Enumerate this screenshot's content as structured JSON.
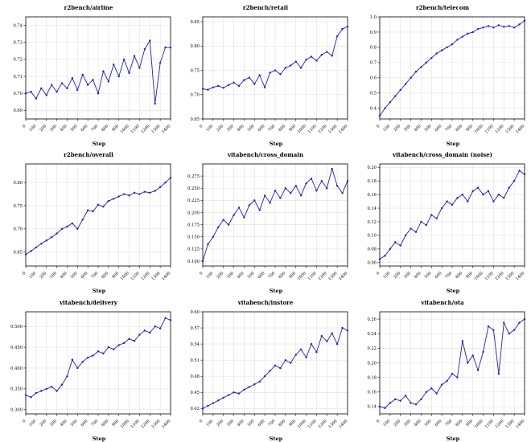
{
  "style": {
    "line_color": "#2121ad",
    "marker_color": "#2121ad",
    "grid_color": "#e0e0e0",
    "axis_color": "#000000",
    "tick_label_color": "#000000"
  },
  "steps": [
    0,
    50,
    100,
    150,
    200,
    250,
    300,
    350,
    400,
    450,
    500,
    550,
    600,
    650,
    700,
    750,
    800,
    850,
    900,
    950,
    1000,
    1050,
    1100,
    1150,
    1200,
    1250,
    1300,
    1350,
    1400
  ],
  "xticks": [
    0,
    100,
    200,
    300,
    400,
    500,
    600,
    700,
    800,
    900,
    1000,
    1100,
    1200,
    1300,
    1400
  ],
  "chart_data": [
    {
      "type": "line",
      "title": "r2bench/airline",
      "xlabel": "Step",
      "values": [
        0.7,
        0.701,
        0.697,
        0.703,
        0.699,
        0.705,
        0.701,
        0.706,
        0.703,
        0.709,
        0.702,
        0.711,
        0.705,
        0.708,
        0.7,
        0.713,
        0.707,
        0.717,
        0.71,
        0.72,
        0.712,
        0.722,
        0.715,
        0.726,
        0.731,
        0.694,
        0.718,
        0.727,
        0.727
      ],
      "ylim": [
        0.685,
        0.745
      ],
      "yticks": [
        0.69,
        0.7,
        0.71,
        0.72,
        0.73,
        0.74
      ],
      "ydecimals": 2
    },
    {
      "type": "line",
      "title": "r2bench/retail",
      "xlabel": "Step",
      "values": [
        0.712,
        0.71,
        0.715,
        0.718,
        0.714,
        0.72,
        0.725,
        0.718,
        0.73,
        0.735,
        0.722,
        0.74,
        0.715,
        0.745,
        0.75,
        0.742,
        0.755,
        0.76,
        0.768,
        0.755,
        0.772,
        0.778,
        0.77,
        0.782,
        0.788,
        0.78,
        0.82,
        0.835,
        0.84
      ],
      "ylim": [
        0.65,
        0.86
      ],
      "yticks": [
        0.65,
        0.7,
        0.75,
        0.8,
        0.85
      ],
      "ydecimals": 2
    },
    {
      "type": "line",
      "title": "r2bench/telecom",
      "xlabel": "Step",
      "values": [
        0.35,
        0.4,
        0.44,
        0.48,
        0.52,
        0.56,
        0.6,
        0.64,
        0.67,
        0.7,
        0.73,
        0.76,
        0.78,
        0.8,
        0.82,
        0.85,
        0.87,
        0.89,
        0.9,
        0.92,
        0.93,
        0.94,
        0.93,
        0.945,
        0.935,
        0.94,
        0.93,
        0.95,
        0.975
      ],
      "ylim": [
        0.33,
        1.0
      ],
      "yticks": [
        0.4,
        0.5,
        0.6,
        0.7,
        0.8,
        0.9,
        1.0
      ],
      "ydecimals": 1
    },
    {
      "type": "line",
      "title": "r2bench/overall",
      "xlabel": "Step",
      "values": [
        0.645,
        0.652,
        0.66,
        0.668,
        0.675,
        0.682,
        0.69,
        0.7,
        0.705,
        0.712,
        0.7,
        0.72,
        0.74,
        0.738,
        0.752,
        0.748,
        0.76,
        0.765,
        0.77,
        0.775,
        0.772,
        0.778,
        0.775,
        0.78,
        0.778,
        0.782,
        0.79,
        0.8,
        0.81
      ],
      "ylim": [
        0.62,
        0.84
      ],
      "yticks": [
        0.65,
        0.7,
        0.75,
        0.8
      ],
      "ydecimals": 2
    },
    {
      "type": "line",
      "title": "vitabench/cross_domain",
      "xlabel": "Step",
      "values": [
        0.1,
        0.135,
        0.15,
        0.17,
        0.185,
        0.175,
        0.195,
        0.21,
        0.19,
        0.215,
        0.225,
        0.205,
        0.235,
        0.22,
        0.245,
        0.23,
        0.25,
        0.24,
        0.255,
        0.235,
        0.26,
        0.27,
        0.245,
        0.265,
        0.25,
        0.29,
        0.255,
        0.24,
        0.265
      ],
      "ylim": [
        0.09,
        0.3
      ],
      "yticks": [
        0.1,
        0.125,
        0.15,
        0.175,
        0.2,
        0.225,
        0.25,
        0.275
      ],
      "ydecimals": 3
    },
    {
      "type": "line",
      "title": "vitabench/cross_domain (noise)",
      "xlabel": "Step",
      "values": [
        0.065,
        0.07,
        0.08,
        0.09,
        0.085,
        0.1,
        0.11,
        0.105,
        0.12,
        0.115,
        0.13,
        0.125,
        0.14,
        0.15,
        0.145,
        0.155,
        0.16,
        0.15,
        0.165,
        0.17,
        0.16,
        0.165,
        0.15,
        0.16,
        0.155,
        0.17,
        0.18,
        0.195,
        0.19
      ],
      "ylim": [
        0.055,
        0.205
      ],
      "yticks": [
        0.06,
        0.08,
        0.1,
        0.12,
        0.14,
        0.16,
        0.18,
        0.2
      ],
      "ydecimals": 2
    },
    {
      "type": "line",
      "title": "vitabench/delivery",
      "xlabel": "Step",
      "values": [
        0.335,
        0.33,
        0.34,
        0.345,
        0.35,
        0.355,
        0.345,
        0.36,
        0.38,
        0.42,
        0.4,
        0.415,
        0.425,
        0.43,
        0.44,
        0.435,
        0.45,
        0.445,
        0.455,
        0.46,
        0.47,
        0.465,
        0.48,
        0.49,
        0.485,
        0.5,
        0.495,
        0.52,
        0.515
      ],
      "ylim": [
        0.29,
        0.535
      ],
      "yticks": [
        0.3,
        0.35,
        0.4,
        0.45,
        0.5
      ],
      "ydecimals": 3
    },
    {
      "type": "line",
      "title": "vitabench/instore",
      "xlabel": "Step",
      "values": [
        0.42,
        0.425,
        0.43,
        0.435,
        0.44,
        0.445,
        0.45,
        0.448,
        0.455,
        0.46,
        0.465,
        0.47,
        0.48,
        0.49,
        0.5,
        0.495,
        0.51,
        0.505,
        0.52,
        0.53,
        0.515,
        0.54,
        0.525,
        0.555,
        0.545,
        0.56,
        0.54,
        0.57,
        0.565
      ],
      "ylim": [
        0.41,
        0.6
      ],
      "yticks": [
        0.42,
        0.45,
        0.48,
        0.51,
        0.54,
        0.57,
        0.6
      ],
      "ydecimals": 2
    },
    {
      "type": "line",
      "title": "vitabench/ota",
      "xlabel": "Step",
      "values": [
        0.14,
        0.138,
        0.145,
        0.15,
        0.148,
        0.155,
        0.145,
        0.143,
        0.15,
        0.16,
        0.165,
        0.158,
        0.17,
        0.175,
        0.185,
        0.18,
        0.23,
        0.2,
        0.21,
        0.19,
        0.215,
        0.25,
        0.245,
        0.185,
        0.255,
        0.24,
        0.245,
        0.255,
        0.26
      ],
      "ylim": [
        0.13,
        0.27
      ],
      "yticks": [
        0.14,
        0.16,
        0.18,
        0.2,
        0.22,
        0.24,
        0.26
      ],
      "ydecimals": 2
    }
  ]
}
